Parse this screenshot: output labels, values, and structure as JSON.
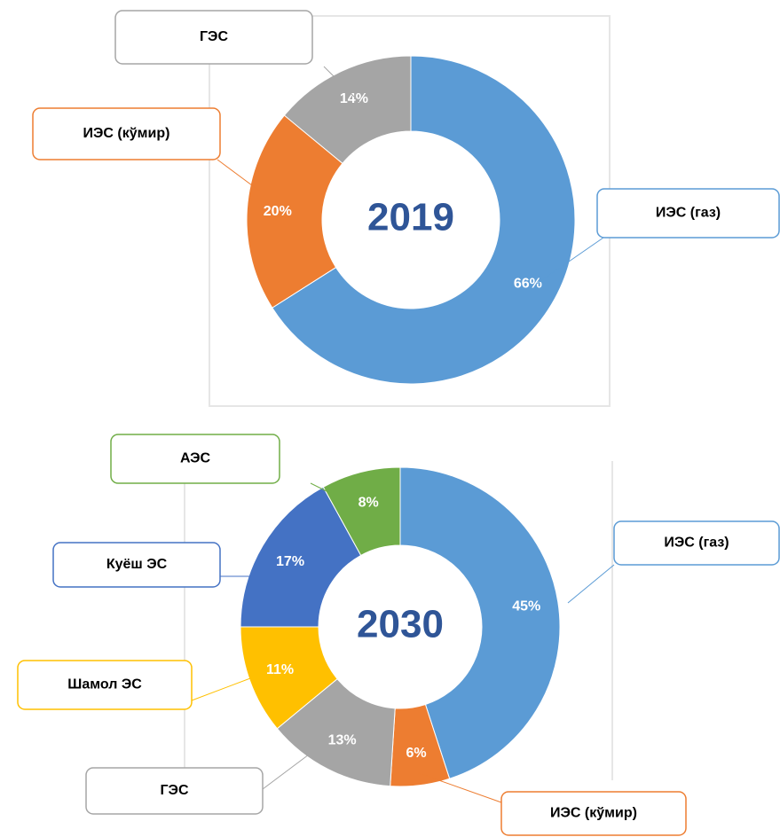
{
  "chart_data": [
    {
      "type": "pie",
      "title": "2019",
      "categories": [
        "ИЭС (газ)",
        "ИЭС (кўмир)",
        "ГЭС"
      ],
      "values": [
        66,
        20,
        14
      ],
      "value_labels": [
        "66%",
        "20%",
        "14%"
      ],
      "colors": [
        "#5b9bd5",
        "#ed7d31",
        "#a5a5a5"
      ]
    },
    {
      "type": "pie",
      "title": "2030",
      "categories": [
        "ИЭС (газ)",
        "ИЭС (кўмир)",
        "ГЭС",
        "Шамол ЭС",
        "Куёш ЭС",
        "АЭС"
      ],
      "values": [
        45,
        6,
        13,
        11,
        17,
        8
      ],
      "value_labels": [
        "45%",
        "6%",
        "13%",
        "11%",
        "17%",
        "8%"
      ],
      "colors": [
        "#5b9bd5",
        "#ed7d31",
        "#a5a5a5",
        "#ffc000",
        "#4472c4",
        "#70ad47"
      ]
    }
  ]
}
